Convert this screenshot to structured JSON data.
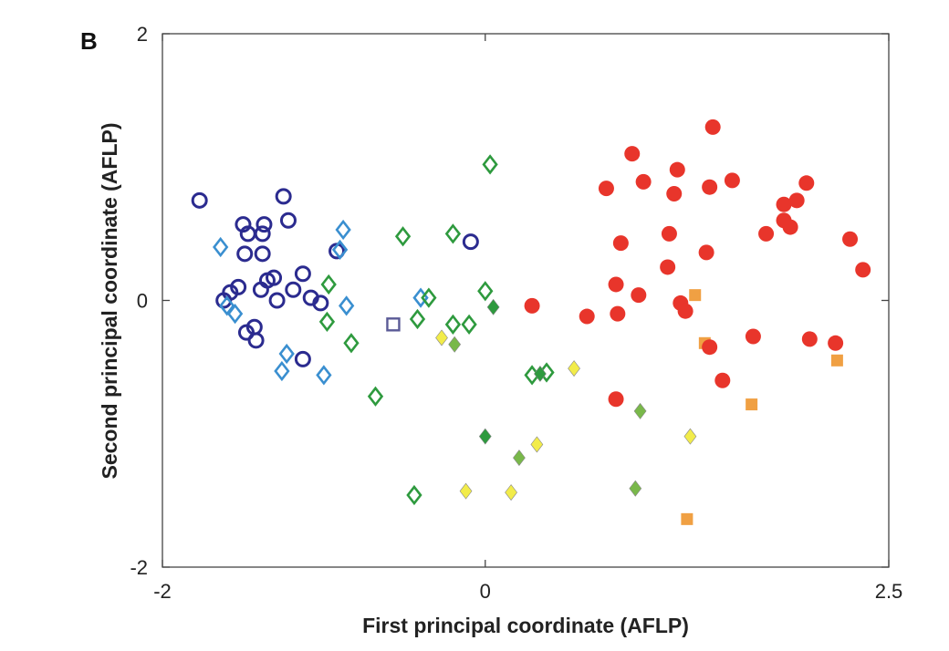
{
  "chart_data": {
    "type": "scatter",
    "panel_label": "B",
    "title": "",
    "xlabel": "First principal coordinate (AFLP)",
    "ylabel": "Second principal coordinate (AFLP)",
    "xlim": [
      -2,
      2.5
    ],
    "ylim": [
      -2,
      2
    ],
    "x_ticks": [
      -2,
      0,
      2.5
    ],
    "x_tick_labels": [
      "-2",
      "0",
      "2.5"
    ],
    "y_ticks": [
      -2,
      0,
      2
    ],
    "y_tick_labels": [
      "-2",
      "0",
      "2"
    ],
    "grid": false,
    "series": [
      {
        "marker": "circle-open",
        "color": "#2b2b8f",
        "points": [
          [
            -1.77,
            0.75
          ],
          [
            -1.5,
            0.57
          ],
          [
            -1.47,
            0.5
          ],
          [
            -1.37,
            0.57
          ],
          [
            -1.25,
            0.78
          ],
          [
            -1.22,
            0.6
          ],
          [
            -1.49,
            0.35
          ],
          [
            -1.38,
            0.5
          ],
          [
            -1.38,
            0.35
          ],
          [
            -0.92,
            0.37
          ],
          [
            -0.09,
            0.44
          ],
          [
            -1.62,
            0.0
          ],
          [
            -1.58,
            0.06
          ],
          [
            -1.53,
            0.1
          ],
          [
            -1.39,
            0.08
          ],
          [
            -1.35,
            0.15
          ],
          [
            -1.31,
            0.17
          ],
          [
            -1.29,
            0.0
          ],
          [
            -1.19,
            0.08
          ],
          [
            -1.13,
            0.2
          ],
          [
            -1.08,
            0.02
          ],
          [
            -1.02,
            -0.02
          ],
          [
            -1.48,
            -0.24
          ],
          [
            -1.43,
            -0.2
          ],
          [
            -1.42,
            -0.3
          ],
          [
            -1.13,
            -0.44
          ]
        ]
      },
      {
        "marker": "diamond-open",
        "color": "#3a8fd0",
        "points": [
          [
            -1.64,
            0.4
          ],
          [
            -1.6,
            -0.04
          ],
          [
            -1.55,
            -0.1
          ],
          [
            -0.88,
            0.53
          ],
          [
            -0.9,
            0.38
          ],
          [
            -1.23,
            -0.4
          ],
          [
            -1.26,
            -0.53
          ],
          [
            -1.0,
            -0.56
          ],
          [
            -0.86,
            -0.04
          ],
          [
            -0.4,
            0.02
          ]
        ]
      },
      {
        "marker": "diamond-open",
        "color": "#2e9a3e",
        "points": [
          [
            0.03,
            1.02
          ],
          [
            -0.51,
            0.48
          ],
          [
            -0.2,
            0.5
          ],
          [
            -0.97,
            0.12
          ],
          [
            -0.98,
            -0.16
          ],
          [
            -0.83,
            -0.32
          ],
          [
            -0.68,
            -0.72
          ],
          [
            -0.35,
            0.02
          ],
          [
            -0.42,
            -0.14
          ],
          [
            -0.2,
            -0.18
          ],
          [
            -0.1,
            -0.18
          ],
          [
            0.0,
            0.07
          ],
          [
            0.29,
            -0.56
          ],
          [
            0.38,
            -0.54
          ],
          [
            -0.44,
            -1.46
          ]
        ]
      },
      {
        "marker": "diamond-filled",
        "color": "#2e9a3e",
        "points": [
          [
            0.05,
            -0.05
          ],
          [
            0.0,
            -1.02
          ],
          [
            0.34,
            -0.55
          ]
        ]
      },
      {
        "marker": "diamond-filled",
        "color": "#79b84a",
        "points": [
          [
            -0.19,
            -0.33
          ],
          [
            0.21,
            -1.18
          ],
          [
            0.96,
            -0.83
          ],
          [
            0.93,
            -1.41
          ]
        ]
      },
      {
        "marker": "diamond-filled",
        "color": "#f2ec4a",
        "points": [
          [
            -0.27,
            -0.28
          ],
          [
            0.55,
            -0.51
          ],
          [
            0.32,
            -1.08
          ],
          [
            -0.12,
            -1.43
          ],
          [
            0.16,
            -1.44
          ],
          [
            1.27,
            -1.02
          ]
        ]
      },
      {
        "marker": "square-open",
        "color": "#5a5a96",
        "points": [
          [
            -0.57,
            -0.18
          ]
        ]
      },
      {
        "marker": "square-filled",
        "color": "#f0a043",
        "points": [
          [
            1.3,
            0.04
          ],
          [
            1.36,
            -0.32
          ],
          [
            1.65,
            -0.78
          ],
          [
            2.18,
            -0.45
          ],
          [
            1.25,
            -1.64
          ]
        ]
      },
      {
        "marker": "circle-filled",
        "color": "#e8352b",
        "points": [
          [
            1.41,
            1.3
          ],
          [
            0.91,
            1.1
          ],
          [
            0.75,
            0.84
          ],
          [
            0.98,
            0.89
          ],
          [
            1.19,
            0.98
          ],
          [
            1.39,
            0.85
          ],
          [
            1.53,
            0.9
          ],
          [
            1.99,
            0.88
          ],
          [
            1.17,
            0.8
          ],
          [
            1.85,
            0.72
          ],
          [
            1.93,
            0.75
          ],
          [
            0.84,
            0.43
          ],
          [
            1.14,
            0.5
          ],
          [
            1.37,
            0.36
          ],
          [
            1.74,
            0.5
          ],
          [
            1.85,
            0.6
          ],
          [
            1.89,
            0.55
          ],
          [
            2.26,
            0.46
          ],
          [
            2.34,
            0.23
          ],
          [
            1.13,
            0.25
          ],
          [
            0.81,
            0.12
          ],
          [
            0.95,
            0.04
          ],
          [
            1.21,
            -0.02
          ],
          [
            1.24,
            -0.08
          ],
          [
            0.29,
            -0.04
          ],
          [
            0.63,
            -0.12
          ],
          [
            0.82,
            -0.1
          ],
          [
            1.39,
            -0.35
          ],
          [
            1.66,
            -0.27
          ],
          [
            2.01,
            -0.29
          ],
          [
            2.17,
            -0.32
          ],
          [
            1.47,
            -0.6
          ],
          [
            0.81,
            -0.74
          ]
        ]
      }
    ]
  }
}
